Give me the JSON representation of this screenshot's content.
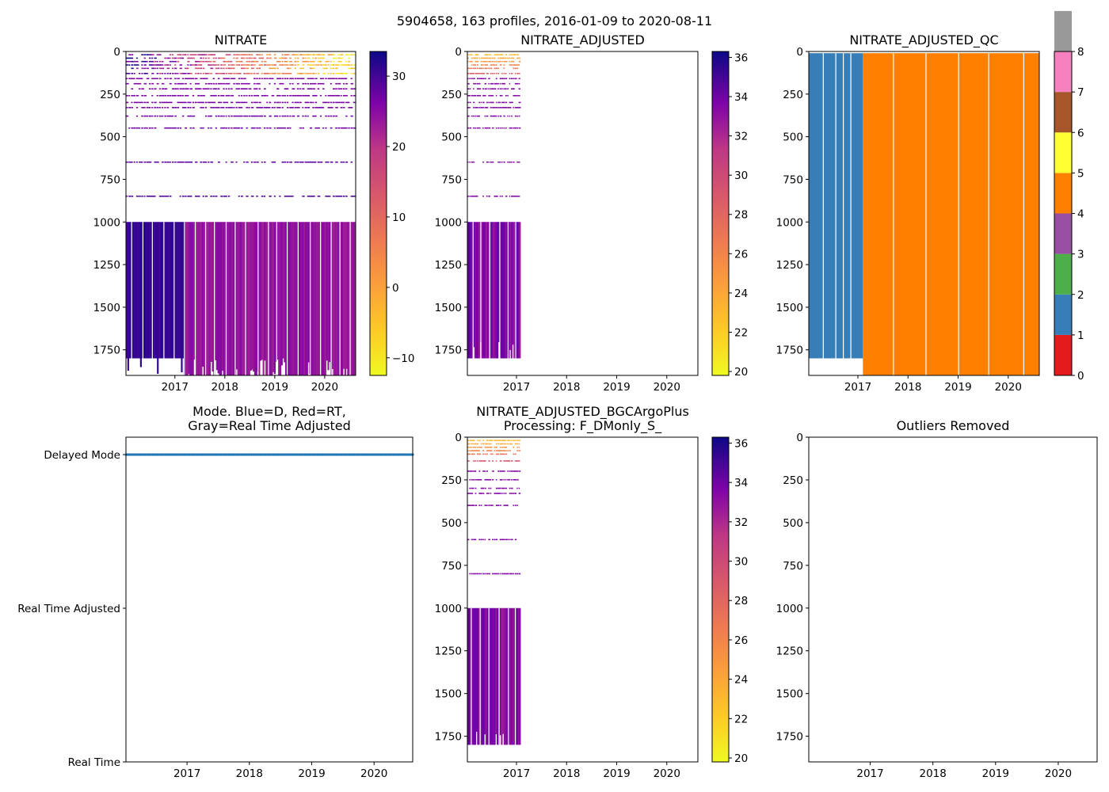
{
  "figure": {
    "title": "5904658, 163 profiles, 2016-01-09 to 2020-08-11"
  },
  "chart_data": [
    {
      "id": "nitrate",
      "type": "heatmap",
      "title": "NITRATE",
      "xlabel": "",
      "ylabel": "",
      "x_range": [
        2016.02,
        2020.62
      ],
      "x_ticks": [
        "2017",
        "2018",
        "2019",
        "2020"
      ],
      "y_range": [
        0,
        1900
      ],
      "y_inverted": true,
      "y_ticks": [
        "0",
        "250",
        "500",
        "750",
        "1000",
        "1250",
        "1500",
        "1750"
      ],
      "colormap": "plasma_r",
      "colorbar": {
        "range": [
          -12.5,
          33.5
        ],
        "ticks": [
          "30",
          "20",
          "10",
          "0",
          "−10"
        ]
      },
      "data_extent": {
        "x": [
          2016.02,
          2020.62
        ],
        "deep_start": 1000,
        "deep_end": 1800,
        "deep_end_after_2017_2": 1900
      },
      "sparse_depths": [
        20,
        40,
        60,
        80,
        100,
        130,
        160,
        190,
        220,
        260,
        300,
        330,
        380,
        450,
        650,
        850
      ],
      "deep_value_early": 31,
      "deep_value_late": 24
    },
    {
      "id": "nitrate_adjusted",
      "type": "heatmap",
      "title": "NITRATE_ADJUSTED",
      "x_range": [
        2016.02,
        2020.62
      ],
      "x_ticks": [
        "2017",
        "2018",
        "2019",
        "2020"
      ],
      "y_range": [
        0,
        1900
      ],
      "y_inverted": true,
      "y_ticks": [
        "0",
        "250",
        "500",
        "750",
        "1000",
        "1250",
        "1500",
        "1750"
      ],
      "colormap": "plasma_r",
      "colorbar": {
        "range": [
          19.8,
          36.3
        ],
        "ticks": [
          "36",
          "34",
          "32",
          "30",
          "28",
          "26",
          "24",
          "22",
          "20"
        ]
      },
      "data_extent": {
        "x": [
          2016.02,
          2017.08
        ],
        "deep_start": 1000,
        "deep_end": 1800
      },
      "sparse_depths": [
        20,
        40,
        60,
        80,
        100,
        130,
        160,
        190,
        220,
        260,
        300,
        330,
        380,
        450,
        650,
        850
      ],
      "deep_value": 33.5
    },
    {
      "id": "nitrate_adjusted_qc",
      "type": "heatmap",
      "title": "NITRATE_ADJUSTED_QC",
      "x_range": [
        2016.02,
        2020.62
      ],
      "x_ticks": [
        "2017",
        "2018",
        "2019",
        "2020"
      ],
      "y_range": [
        0,
        1900
      ],
      "y_inverted": true,
      "y_ticks": [
        "0",
        "250",
        "500",
        "750",
        "1000",
        "1250",
        "1500",
        "1750"
      ],
      "colorbar": {
        "range": [
          0,
          8
        ],
        "ticks": [
          "8",
          "7",
          "6",
          "5",
          "4",
          "3",
          "2",
          "1",
          "0"
        ],
        "classes": [
          "#e41a1c",
          "#377eb8",
          "#4daf4a",
          "#984ea3",
          "#ff7f00",
          "#ffff33",
          "#a65628",
          "#f781bf",
          "#999999"
        ]
      },
      "segments": [
        {
          "x0": 2016.02,
          "x1": 2017.1,
          "qc": 1,
          "color": "#377eb8"
        },
        {
          "x0": 2017.1,
          "x1": 2020.62,
          "qc": 4,
          "color": "#ff7f00"
        }
      ]
    },
    {
      "id": "mode",
      "type": "scatter",
      "title": "Mode. Blue=D, Red=RT, Gray=Real Time Adjusted",
      "title_lines": [
        "Mode. Blue=D, Red=RT,",
        "Gray=Real Time Adjusted"
      ],
      "x_range": [
        2016.02,
        2020.62
      ],
      "x_ticks": [
        "2017",
        "2018",
        "2019",
        "2020"
      ],
      "y_categories": [
        "Delayed Mode",
        "Real Time Adjusted",
        "Real Time"
      ],
      "series": [
        {
          "name": "D",
          "color": "#1f77b4",
          "y": "Delayed Mode",
          "x_start": 2016.02,
          "x_end": 2020.62,
          "count": 163
        }
      ]
    },
    {
      "id": "nitrate_bgcargoplus",
      "type": "heatmap",
      "title": "NITRATE_ADJUSTED_BGCArgoPlus Processing: F_DMonly_S_",
      "title_lines": [
        "NITRATE_ADJUSTED_BGCArgoPlus",
        "Processing: F_DMonly_S_"
      ],
      "x_range": [
        2016.02,
        2020.62
      ],
      "x_ticks": [
        "2017",
        "2018",
        "2019",
        "2020"
      ],
      "y_range": [
        0,
        1900
      ],
      "y_inverted": true,
      "y_ticks": [
        "0",
        "250",
        "500",
        "750",
        "1000",
        "1250",
        "1500",
        "1750"
      ],
      "colormap": "plasma_r",
      "colorbar": {
        "range": [
          19.8,
          36.3
        ],
        "ticks": [
          "36",
          "34",
          "32",
          "30",
          "28",
          "26",
          "24",
          "22",
          "20"
        ]
      },
      "data_extent": {
        "x": [
          2016.02,
          2017.08
        ],
        "deep_start": 1000,
        "deep_end": 1800
      },
      "sparse_depths": [
        20,
        40,
        60,
        80,
        100,
        140,
        200,
        250,
        300,
        330,
        400,
        600,
        800
      ],
      "deep_value": 33.5
    },
    {
      "id": "outliers",
      "type": "scatter",
      "title": "Outliers Removed",
      "x_range": [
        2016.02,
        2020.62
      ],
      "x_ticks": [
        "2017",
        "2018",
        "2019",
        "2020"
      ],
      "y_range": [
        0,
        1900
      ],
      "y_inverted": true,
      "y_ticks": [
        "0",
        "250",
        "500",
        "750",
        "1000",
        "1250",
        "1500",
        "1750"
      ],
      "series": []
    }
  ]
}
